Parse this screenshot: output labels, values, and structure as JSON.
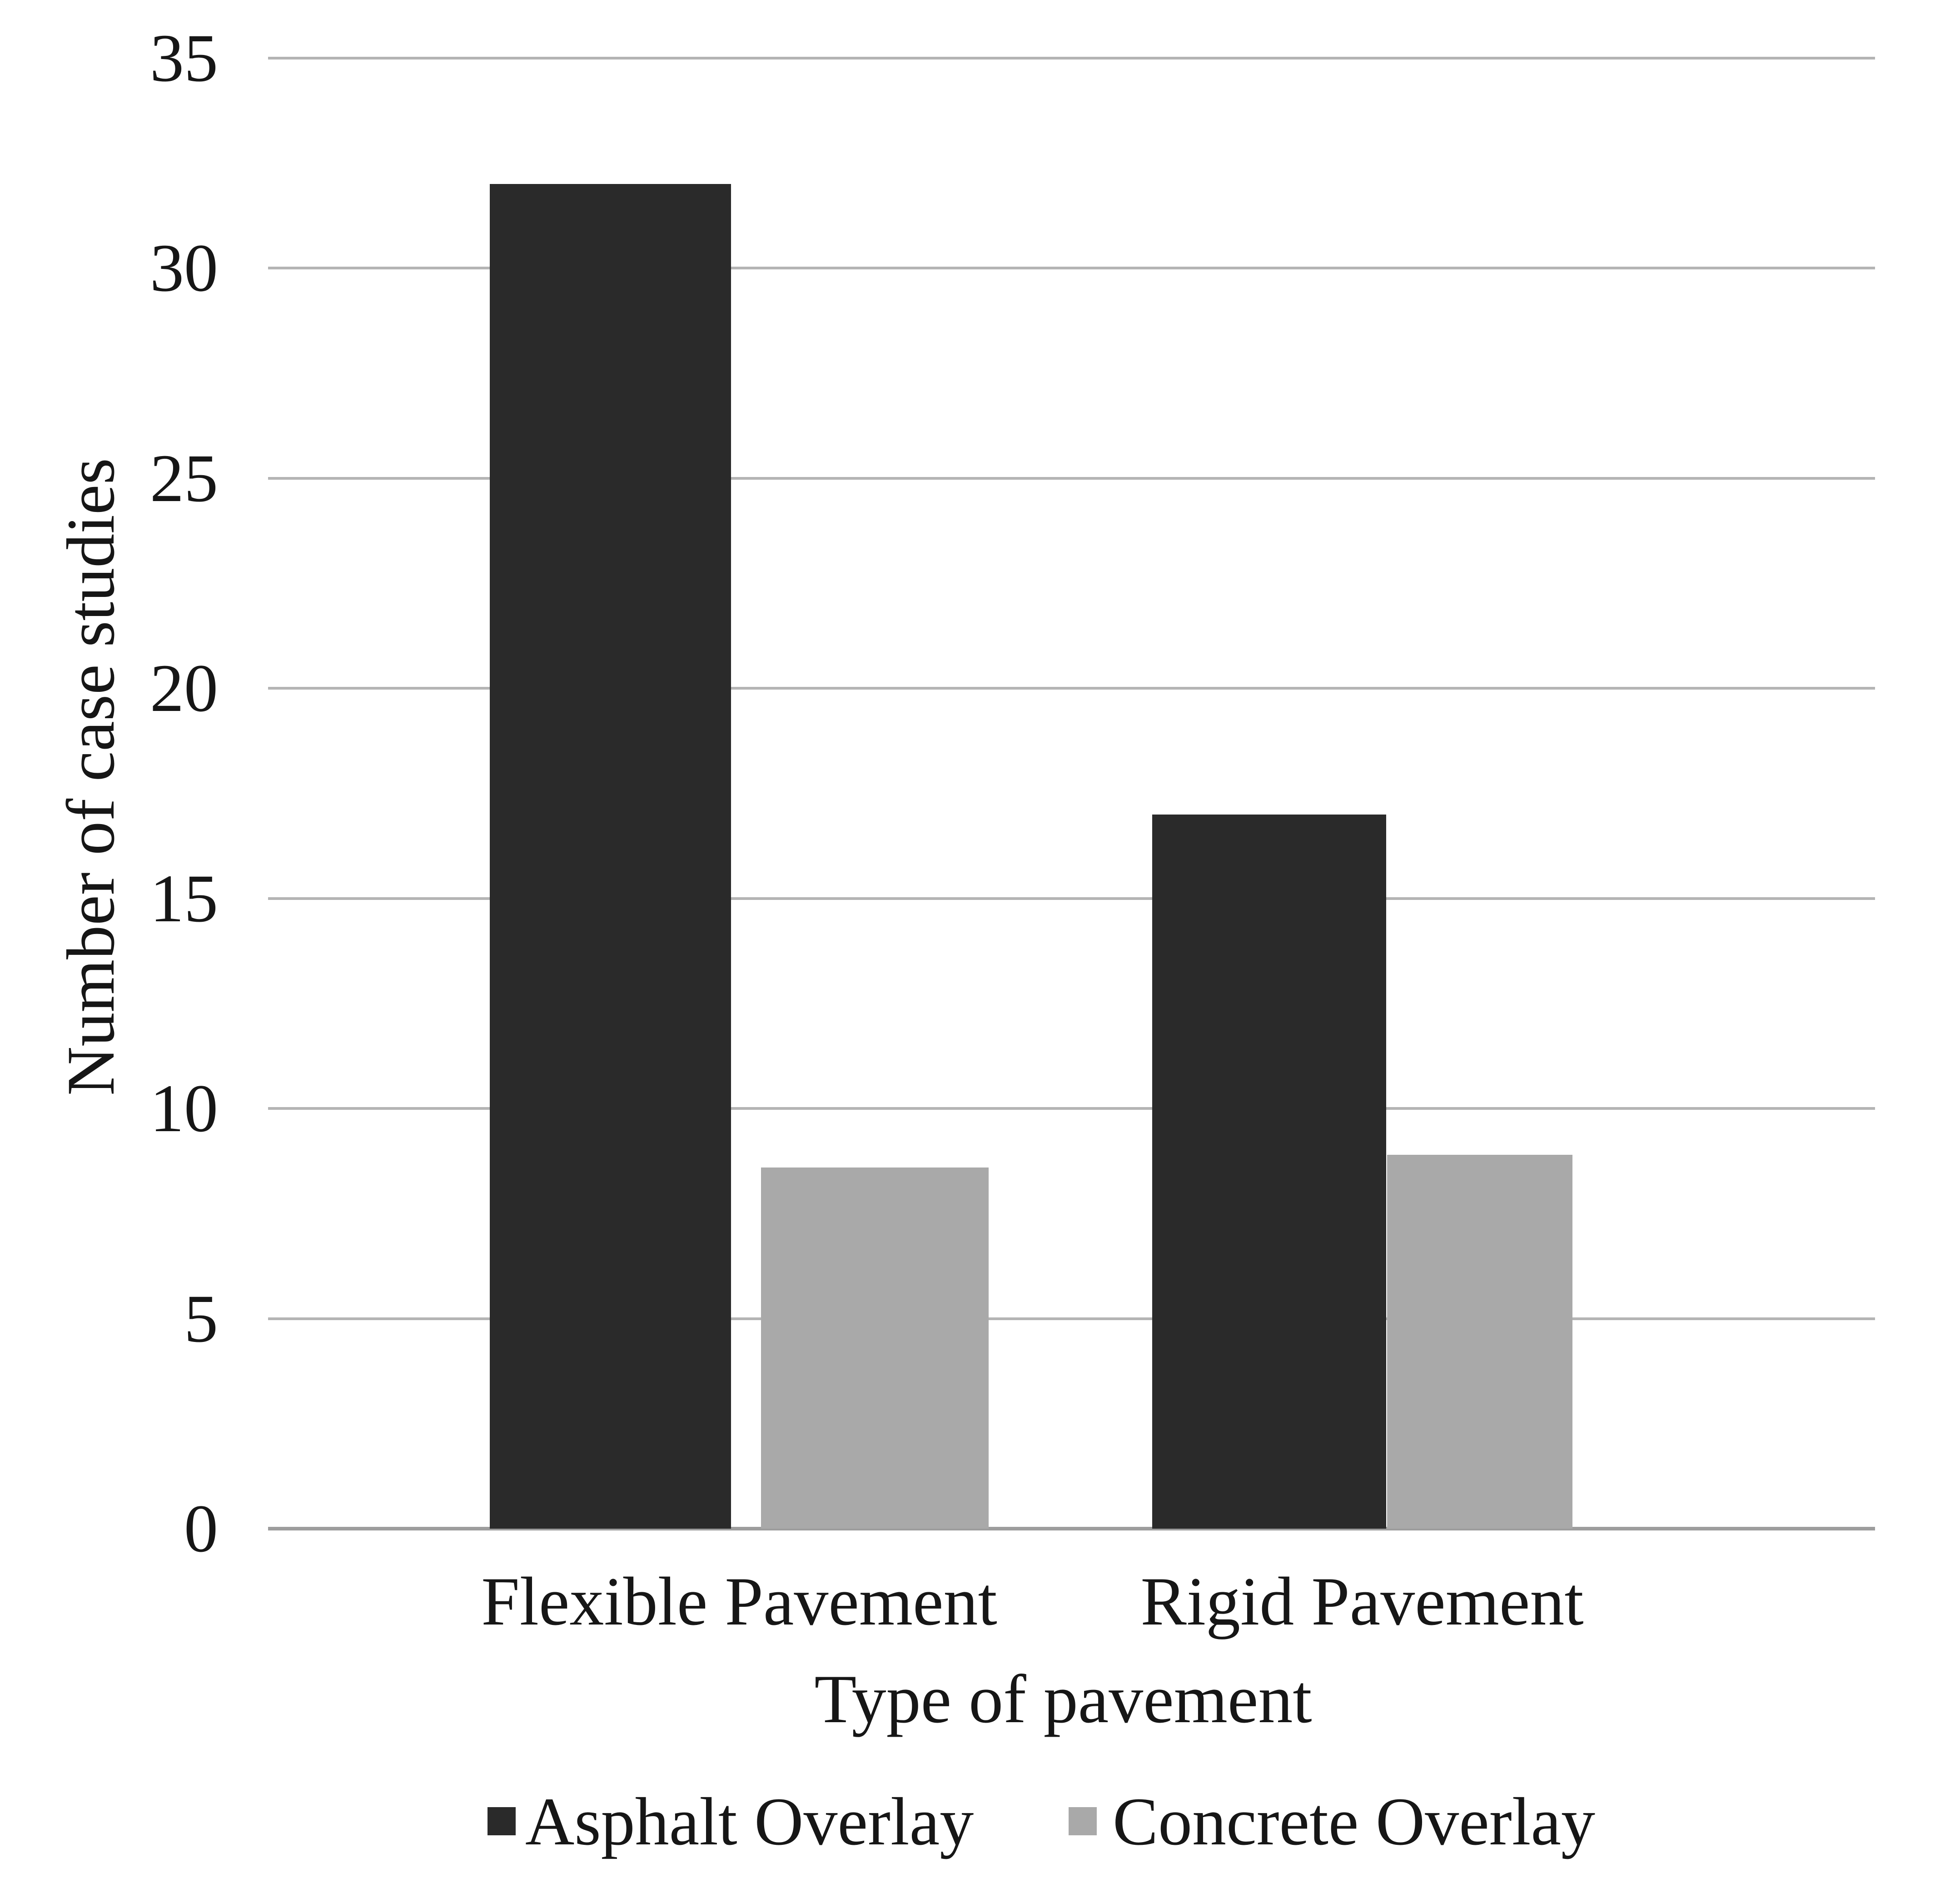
{
  "figure": {
    "background": "#ffffff",
    "text_color": "#161616"
  },
  "chart_data": {
    "type": "bar",
    "title": "",
    "categories": [
      "Flexible Pavement",
      "Rigid Pavement"
    ],
    "series": [
      {
        "name": "Asphalt Overlay",
        "color": "#2a2a2a",
        "values": [
          32,
          17
        ]
      },
      {
        "name": "Concrete Overlay",
        "color": "#a9a9a9",
        "values": [
          8.6,
          8.9
        ]
      }
    ],
    "xlabel": "Type of pavement",
    "ylabel": "Number of case studies",
    "ylim": [
      0,
      35
    ],
    "yticks": [
      0,
      5,
      10,
      15,
      20,
      25,
      30,
      35
    ],
    "grid": "horizontal",
    "gridline_color": "#b4b4b4",
    "baseline_color": "#9d9d9d",
    "legend_position": "bottom"
  }
}
